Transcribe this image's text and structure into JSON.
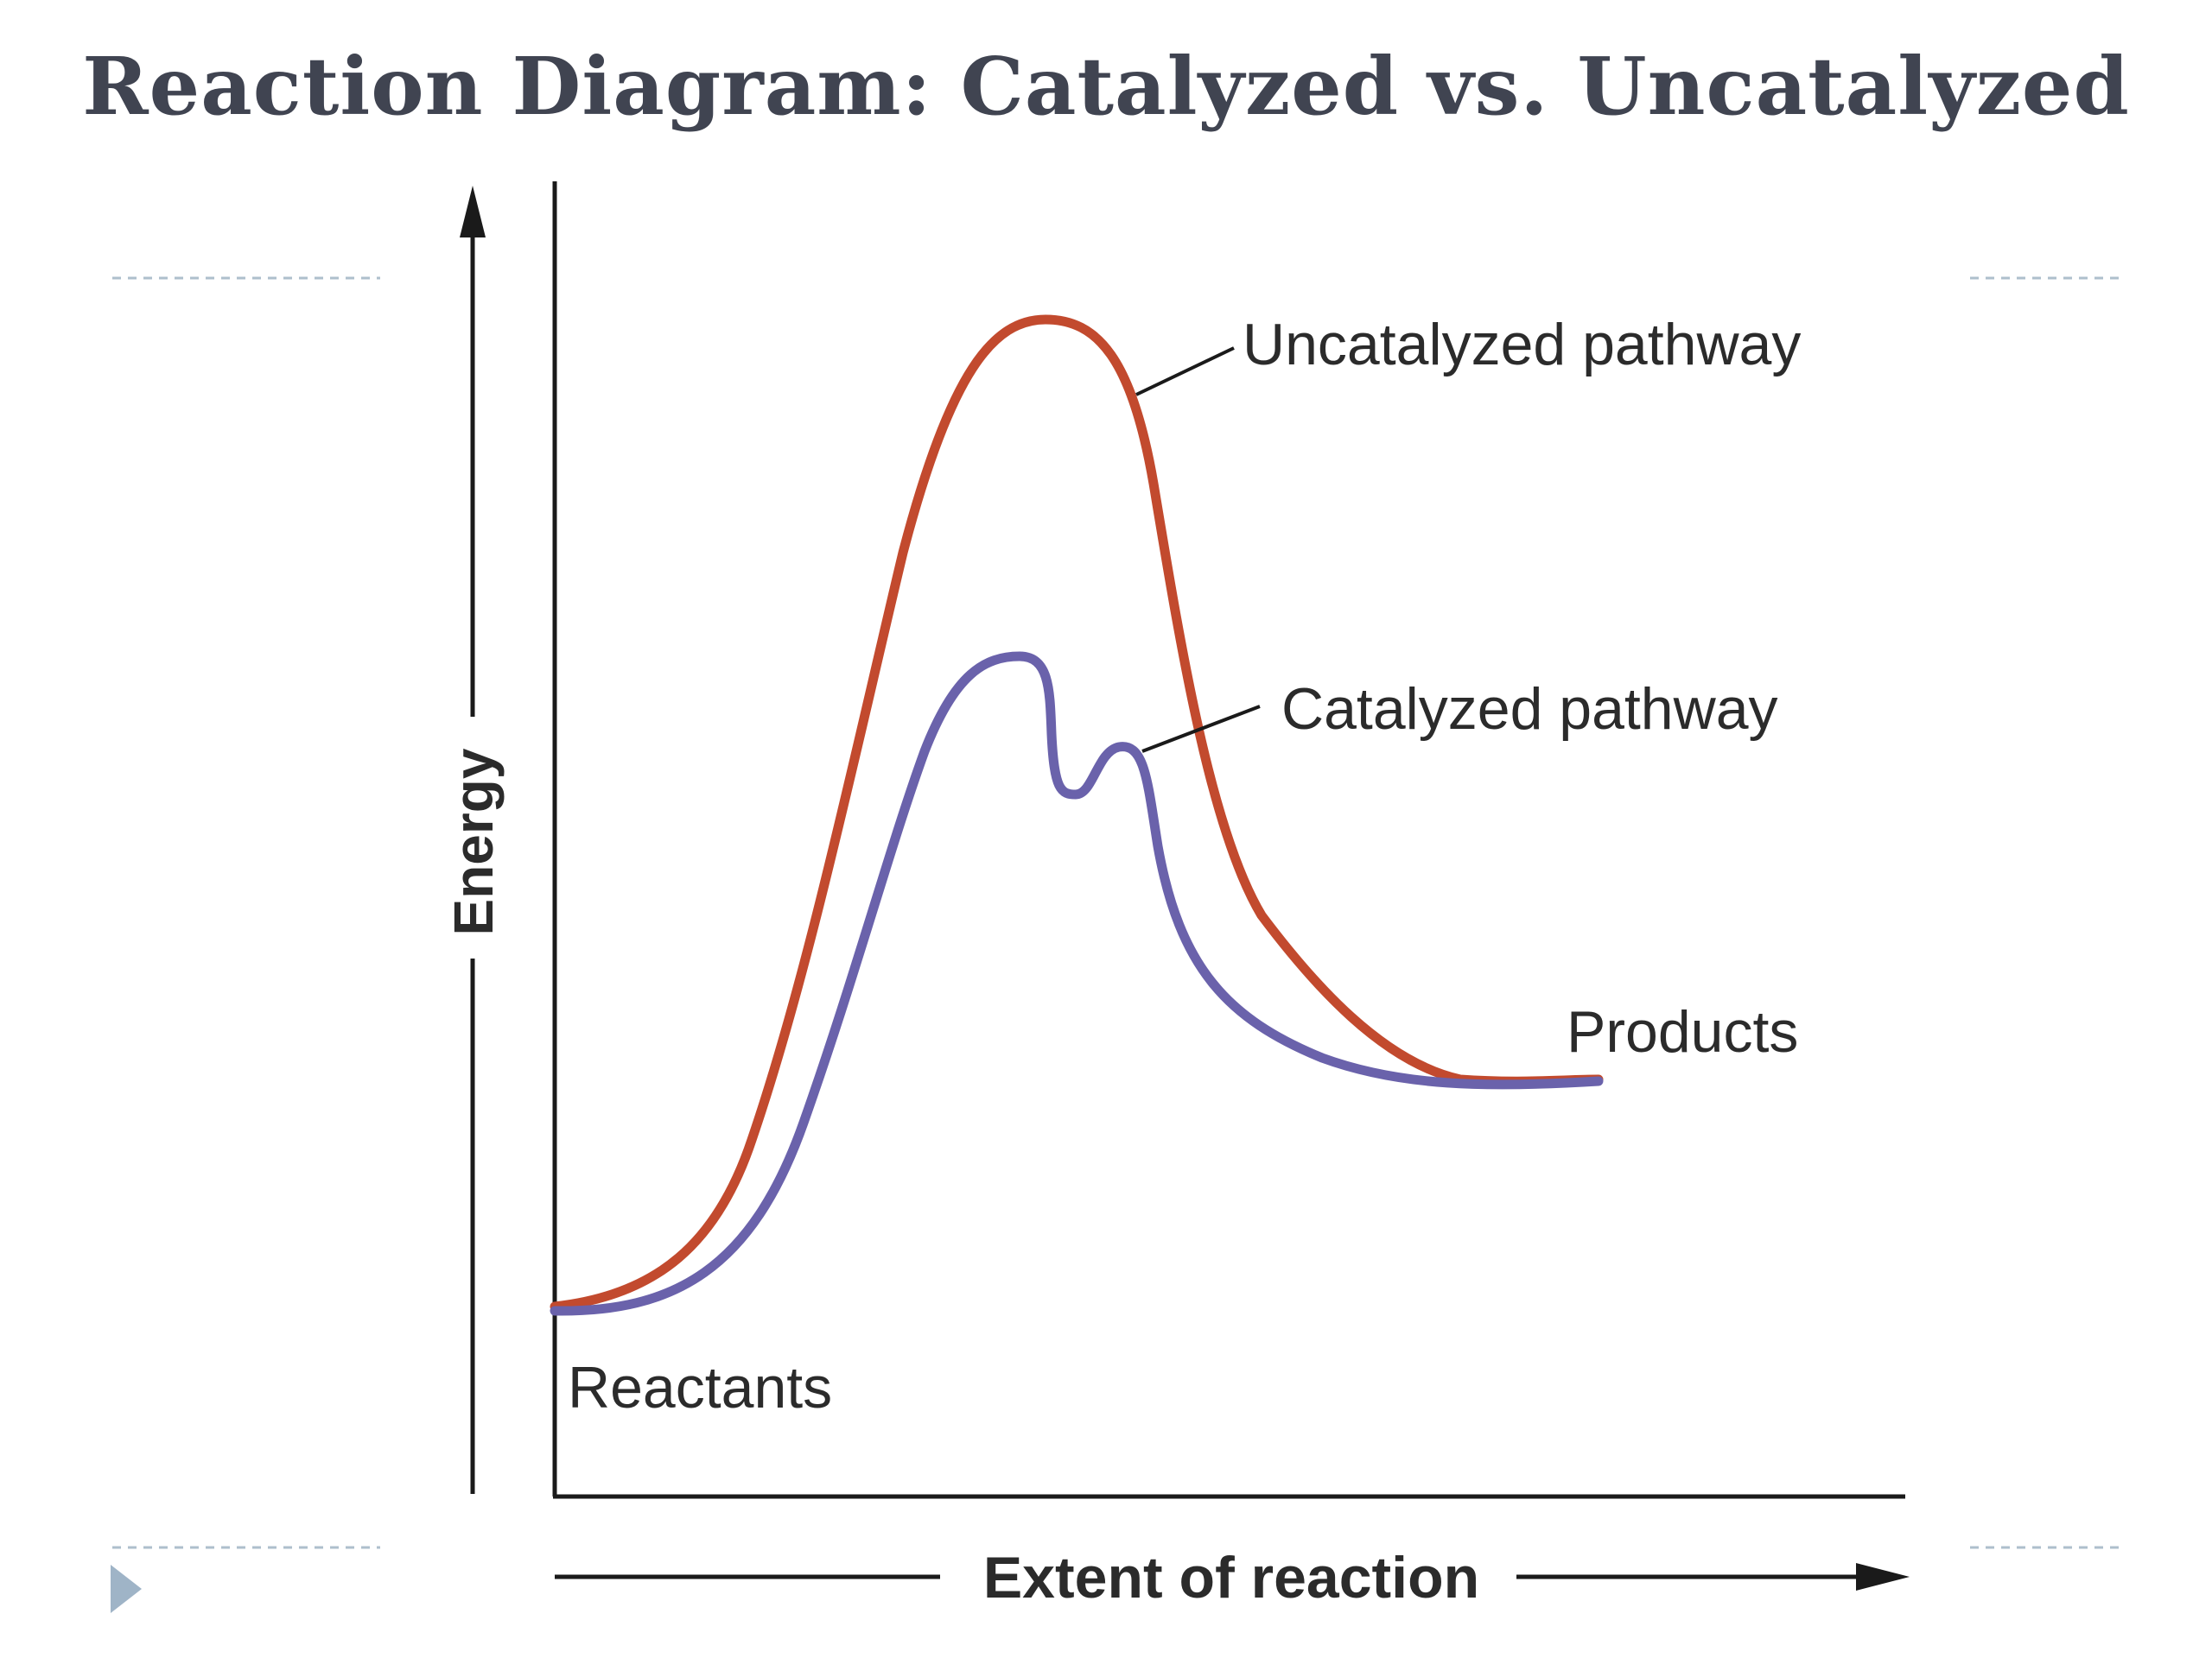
{
  "slide": {
    "title": "Reaction Diagram: Catalyzed vs. Uncatalyzed",
    "title_color": "#404451",
    "bullet_color": "#9fb4c7",
    "rule_color": "#aebfcc"
  },
  "diagram": {
    "y_axis_label": "Energy",
    "x_axis_label": "Extent of reaction",
    "reactants_label": "Reactants",
    "products_label": "Products",
    "uncatalyzed": {
      "label": "Uncatalyzed pathway",
      "color": "#c24a2e"
    },
    "catalyzed": {
      "label": "Catalyzed pathway",
      "color": "#6a62ab"
    },
    "axis_color": "#1a1a1a",
    "text_color": "#2b2b2b"
  }
}
